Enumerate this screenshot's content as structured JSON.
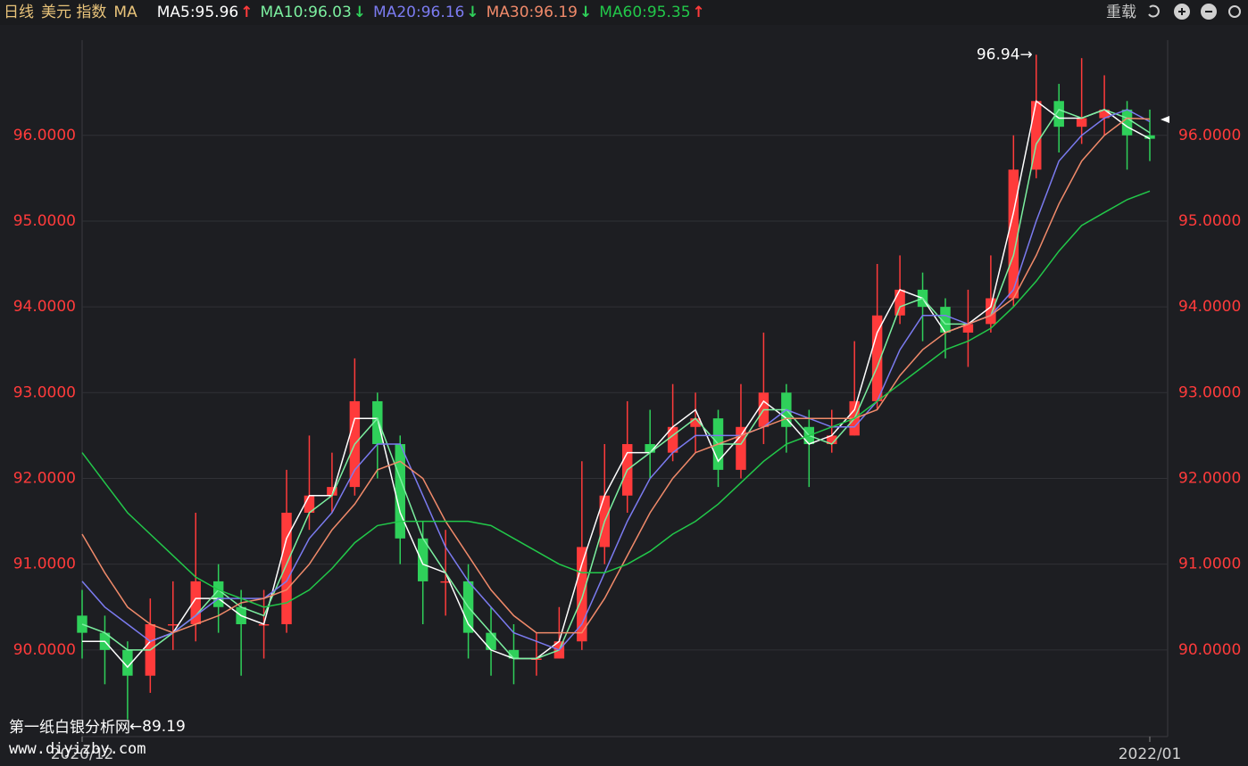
{
  "chart_data": {
    "type": "candlestick",
    "header": [
      "日线",
      "美元 指数",
      "MA"
    ],
    "toolbar": "重载",
    "categories": [
      "2020/12",
      null,
      null,
      null,
      null,
      null,
      null,
      null,
      null,
      null,
      null,
      null,
      null,
      null,
      null,
      null,
      null,
      null,
      null,
      null,
      null,
      null,
      null,
      null,
      null,
      null,
      null,
      null,
      null,
      null,
      null,
      null,
      null,
      null,
      null,
      null,
      null,
      null,
      null,
      null,
      null,
      null,
      null,
      null,
      null,
      null,
      null,
      "2022/01"
    ],
    "open": [
      90.4,
      90.2,
      90.0,
      89.7,
      90.3,
      90.3,
      90.8,
      90.5,
      90.3,
      90.3,
      91.6,
      91.8,
      91.9,
      92.9,
      92.4,
      91.3,
      90.8,
      90.8,
      90.2,
      90.0,
      89.9,
      89.9,
      90.1,
      91.2,
      91.8,
      92.4,
      92.3,
      92.6,
      92.7,
      92.1,
      92.6,
      93.0,
      92.6,
      92.4,
      92.5,
      92.9,
      93.9,
      94.2,
      94.0,
      93.7,
      93.8,
      94.1,
      95.6,
      96.4,
      96.1,
      96.2,
      96.3,
      96.0
    ],
    "high": [
      90.7,
      90.4,
      90.1,
      90.6,
      90.8,
      91.6,
      91.0,
      90.7,
      90.7,
      92.1,
      92.5,
      92.3,
      93.4,
      93.0,
      92.5,
      91.5,
      91.4,
      91.0,
      90.5,
      90.3,
      90.2,
      90.5,
      92.2,
      92.4,
      92.9,
      92.8,
      93.1,
      93.0,
      92.8,
      93.1,
      93.7,
      93.1,
      92.8,
      92.8,
      93.6,
      94.5,
      94.6,
      94.4,
      94.1,
      94.2,
      94.6,
      96.0,
      96.94,
      96.6,
      96.9,
      96.7,
      96.4,
      96.3
    ],
    "low": [
      89.9,
      89.6,
      89.19,
      89.5,
      90.0,
      90.1,
      90.2,
      89.7,
      89.9,
      90.2,
      91.4,
      91.6,
      91.8,
      92.0,
      91.0,
      90.3,
      90.4,
      89.9,
      89.7,
      89.6,
      89.7,
      89.9,
      90.0,
      91.0,
      91.6,
      92.0,
      92.2,
      92.3,
      91.9,
      92.0,
      92.4,
      92.3,
      91.9,
      92.3,
      92.5,
      92.8,
      93.8,
      93.6,
      93.4,
      93.3,
      93.7,
      94.0,
      95.5,
      95.8,
      95.9,
      96.0,
      95.6,
      95.7
    ],
    "close": [
      90.2,
      90.0,
      89.7,
      90.3,
      90.3,
      90.8,
      90.5,
      90.3,
      90.3,
      91.6,
      91.8,
      91.9,
      92.9,
      92.4,
      91.3,
      90.8,
      90.8,
      90.2,
      90.0,
      89.9,
      89.9,
      90.1,
      91.2,
      91.8,
      92.4,
      92.3,
      92.6,
      92.7,
      92.1,
      92.6,
      93.0,
      92.6,
      92.4,
      92.5,
      92.9,
      93.9,
      94.2,
      94.0,
      93.7,
      93.8,
      94.1,
      95.6,
      96.4,
      96.1,
      96.2,
      96.3,
      96.0,
      95.96
    ],
    "up_color": "#ff3b3b",
    "down_color": "#2fd05a",
    "high_label": "96.94→",
    "low_label": "←89.19",
    "series": [
      {
        "name": "MA5:95.96",
        "arrow": "↑",
        "arrow_color": "#ff3b3b",
        "color": "#ffffff",
        "values": [
          90.1,
          90.1,
          89.8,
          90.1,
          90.2,
          90.6,
          90.6,
          90.4,
          90.3,
          91.3,
          91.8,
          91.8,
          92.7,
          92.7,
          91.6,
          91.0,
          90.9,
          90.3,
          90.0,
          89.9,
          89.9,
          90.1,
          91.0,
          91.8,
          92.3,
          92.3,
          92.6,
          92.8,
          92.2,
          92.5,
          92.9,
          92.7,
          92.4,
          92.5,
          92.8,
          93.7,
          94.2,
          94.1,
          93.7,
          93.8,
          94.0,
          95.1,
          96.4,
          96.2,
          96.2,
          96.3,
          96.1,
          95.96
        ]
      },
      {
        "name": "MA10:96.03",
        "arrow": "↓",
        "arrow_color": "#2fd05a",
        "color": "#7cf0a0",
        "values": [
          90.3,
          90.2,
          90.0,
          90.0,
          90.2,
          90.4,
          90.7,
          90.5,
          90.4,
          91.0,
          91.6,
          91.8,
          92.4,
          92.7,
          92.0,
          91.3,
          90.9,
          90.5,
          90.2,
          89.9,
          89.9,
          90.0,
          90.6,
          91.5,
          92.1,
          92.3,
          92.5,
          92.7,
          92.4,
          92.4,
          92.8,
          92.8,
          92.5,
          92.4,
          92.7,
          93.3,
          94.0,
          94.1,
          93.8,
          93.8,
          93.9,
          94.6,
          95.9,
          96.3,
          96.2,
          96.3,
          96.2,
          96.03
        ]
      },
      {
        "name": "MA20:96.16",
        "arrow": "↓",
        "arrow_color": "#2fd05a",
        "color": "#7b7bf0",
        "values": [
          90.8,
          90.5,
          90.3,
          90.1,
          90.2,
          90.4,
          90.6,
          90.6,
          90.6,
          90.8,
          91.3,
          91.6,
          92.1,
          92.4,
          92.4,
          91.8,
          91.2,
          90.8,
          90.5,
          90.2,
          90.1,
          90.0,
          90.3,
          90.9,
          91.5,
          92.0,
          92.3,
          92.5,
          92.5,
          92.5,
          92.6,
          92.8,
          92.7,
          92.6,
          92.6,
          92.9,
          93.5,
          93.9,
          93.9,
          93.8,
          93.9,
          94.2,
          95.0,
          95.7,
          96.0,
          96.2,
          96.3,
          96.16
        ]
      },
      {
        "name": "MA30:96.19",
        "arrow": "↓",
        "arrow_color": "#2fd05a",
        "color": "#f08a6a",
        "values": [
          91.35,
          90.9,
          90.5,
          90.3,
          90.2,
          90.3,
          90.4,
          90.55,
          90.6,
          90.7,
          91.0,
          91.4,
          91.7,
          92.1,
          92.2,
          92.0,
          91.5,
          91.1,
          90.7,
          90.4,
          90.2,
          90.2,
          90.2,
          90.6,
          91.1,
          91.6,
          92.0,
          92.3,
          92.4,
          92.5,
          92.6,
          92.7,
          92.7,
          92.7,
          92.7,
          92.8,
          93.2,
          93.5,
          93.7,
          93.8,
          93.9,
          94.1,
          94.6,
          95.2,
          95.7,
          96.0,
          96.2,
          96.19
        ]
      },
      {
        "name": "MA60:95.35",
        "arrow": "↑",
        "arrow_color": "#ff3b3b",
        "color": "#22c84a",
        "values": [
          92.3,
          91.95,
          91.6,
          91.35,
          91.1,
          90.85,
          90.7,
          90.6,
          90.5,
          90.55,
          90.7,
          90.95,
          91.25,
          91.45,
          91.5,
          91.5,
          91.5,
          91.5,
          91.45,
          91.3,
          91.15,
          91.0,
          90.9,
          90.9,
          91.0,
          91.15,
          91.35,
          91.5,
          91.7,
          91.95,
          92.2,
          92.4,
          92.5,
          92.6,
          92.7,
          92.9,
          93.1,
          93.3,
          93.5,
          93.6,
          93.75,
          94.0,
          94.3,
          94.65,
          94.95,
          95.1,
          95.25,
          95.35
        ]
      }
    ],
    "ylim": [
      88.99,
      97.11
    ],
    "yticks": [
      {
        "value": 90,
        "label": "90.0000"
      },
      {
        "value": 91,
        "label": "91.0000"
      },
      {
        "value": 92,
        "label": "92.0000"
      },
      {
        "value": 93,
        "label": "93.0000"
      },
      {
        "value": 94,
        "label": "94.0000"
      },
      {
        "value": 95,
        "label": "95.0000"
      },
      {
        "value": 96,
        "label": "96.0000"
      }
    ],
    "tick_color": "#ff3b3b",
    "grid": true,
    "watermark": [
      "第一纸白银分析网",
      "www.diyizby.com"
    ]
  }
}
